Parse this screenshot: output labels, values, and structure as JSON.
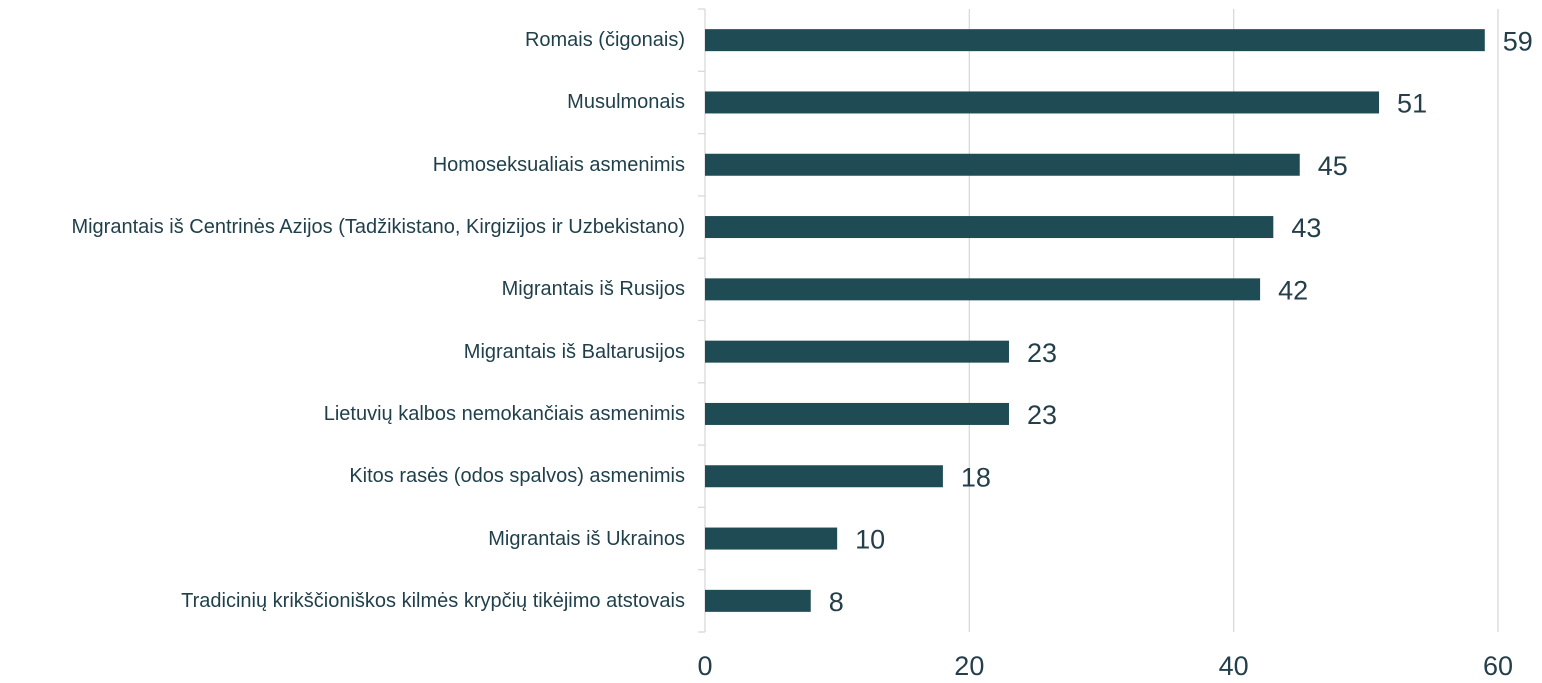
{
  "chart_data": {
    "type": "bar",
    "orientation": "horizontal",
    "categories": [
      "Romais (čigonais)",
      "Musulmonais",
      "Homoseksualiais asmenimis",
      "Migrantais iš Centrinės Azijos (Tadžikistano, Kirgizijos ir Uzbekistano)",
      "Migrantais iš Rusijos",
      "Migrantais iš Baltarusijos",
      "Lietuvių kalbos nemokančiais asmenimis",
      "Kitos rasės (odos spalvos) asmenimis",
      "Migrantais iš Ukrainos",
      "Tradicinių krikščioniškos kilmės krypčių tikėjimo atstovais"
    ],
    "values": [
      59,
      51,
      45,
      43,
      42,
      23,
      23,
      18,
      10,
      8
    ],
    "color": "#1f4b55",
    "xlim": [
      0,
      60
    ],
    "xticks": [
      0,
      20,
      40,
      60
    ],
    "grid": true
  }
}
